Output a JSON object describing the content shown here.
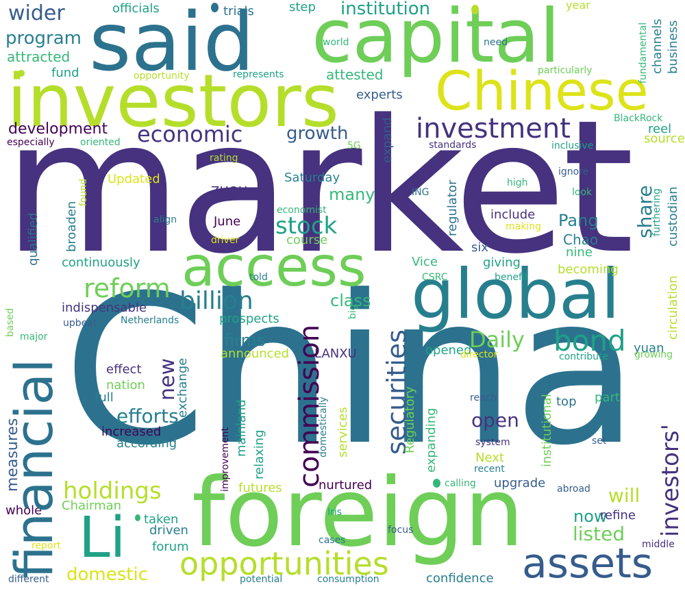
{
  "words": {
    "market": "market",
    "China": "China",
    "investors": "investors",
    "said": "said",
    "capital": "capital",
    "Chinese": "Chinese",
    "foreign": "foreign",
    "global": "global",
    "access": "access",
    "financial": "financial",
    "Li": "Li",
    "assets": "assets",
    "opportunities": "opportunities",
    "investment": "investment",
    "commission": "commission",
    "securities": "securities",
    "bond": "bond",
    "reform": "reform",
    "billion": "billion",
    "stock": "stock",
    "holdings": "holdings",
    "economic": "economic",
    "wider": "wider",
    "program": "program",
    "institution": "institution",
    "development": "development",
    "growth": "growth",
    "Daily": "Daily",
    "investors_apos": "investors'",
    "new": "new",
    "efforts": "efforts",
    "open": "open",
    "domestic": "domestic",
    "listed": "listed",
    "share": "share",
    "Pang": "Pang",
    "will": "will",
    "now": "now",
    "many": "many",
    "class": "class",
    "firms": "firms",
    "measures": "measures",
    "attracted": "attracted",
    "Chao": "Chao",
    "fund": "fund",
    "attested": "attested",
    "experts": "experts",
    "officials": "officials",
    "trials": "trials",
    "step": "step",
    "year": "year",
    "world": "world",
    "need": "need",
    "particularly": "particularly",
    "represents": "represents",
    "opportunity": "opportunity",
    "fundamental": "fundamental",
    "channels": "channels",
    "business": "business",
    "BlackRock": "BlackRock",
    "reel": "reel",
    "source": "source",
    "inclusive": "inclusive",
    "standards": "standards",
    "expand": "expand",
    "especially": "especially",
    "oriented": "oriented",
    "5G": "5G",
    "rating": "rating",
    "Updated": "Updated",
    "Saturday": "Saturday",
    "ZHOU": "ZHOU",
    "qualified": "qualified",
    "broaden": "broaden",
    "found": "found",
    "economist": "economist",
    "ING": "ING",
    "regulator": "regulator",
    "ignore": "ignore",
    "high": "high",
    "look": "look",
    "furthering": "furthering",
    "custodian": "custodian",
    "align": "align",
    "driver": "driver",
    "June": "June",
    "include": "include",
    "making": "making",
    "course": "course",
    "six": "six",
    "nine": "nine",
    "continuously": "continuously",
    "giving": "giving",
    "becoming": "becoming",
    "Vice": "Vice",
    "told": "told",
    "CSRC": "CSRC",
    "benefit": "benefit",
    "circulation": "circulation",
    "indispensable": "indispensable",
    "prospects": "prospects",
    "upbeat": "upbeat",
    "Netherlands": "Netherlands",
    "based": "based",
    "major": "major",
    "big": "big",
    "yuan": "yuan",
    "announced": "announced",
    "LANXU": "LANXU",
    "opened": "opened",
    "director": "director",
    "contribute": "contribute",
    "growing": "growing",
    "institutional": "institutional",
    "effect": "effect",
    "exchange": "exchange",
    "nation": "nation",
    "full": "full",
    "domestically": "domestically",
    "services": "services",
    "Regulatory": "Regulatory",
    "reach": "reach",
    "top": "top",
    "part": "part",
    "increased": "increased",
    "according": "according",
    "mainland": "mainland",
    "relaxing": "relaxing",
    "improvement": "improvement",
    "expanding": "expanding",
    "system": "system",
    "set": "set",
    "Next": "Next",
    "recent": "recent",
    "futures": "futures",
    "nurtured": "nurtured",
    "upgrade": "upgrade",
    "calling": "calling",
    "abroad": "abroad",
    "whole": "whole",
    "Chairman": "Chairman",
    "taken": "taken",
    "refine": "refine",
    "driven": "driven",
    "Iris": "Iris",
    "focus": "focus",
    "forum": "forum",
    "report": "report",
    "cases": "cases",
    "middle": "middle",
    "confidence": "confidence",
    "different": "different",
    "potential": "potential",
    "consumption": "consumption"
  },
  "colors": {
    "dark_purple": "#46327e",
    "indigo": "#3e4a89",
    "slate_blue": "#365c8d",
    "steel_blue": "#2c728e",
    "teal": "#277f8e",
    "teal_green": "#1fa187",
    "green": "#35b779",
    "light_green": "#6ece58",
    "lime": "#b5de2b",
    "yellow_green": "#dde318",
    "deep_purple": "#440154"
  }
}
